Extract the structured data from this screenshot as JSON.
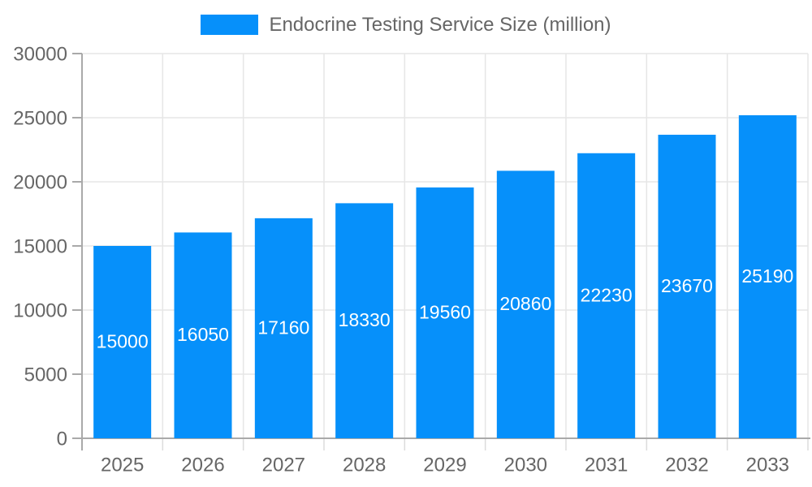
{
  "chart_data": {
    "type": "bar",
    "title": "",
    "legend": {
      "label": "Endocrine Testing Service Size (million)",
      "position": "top"
    },
    "categories": [
      "2025",
      "2026",
      "2027",
      "2028",
      "2029",
      "2030",
      "2031",
      "2032",
      "2033"
    ],
    "series": [
      {
        "name": "Endocrine Testing Service Size (million)",
        "values": [
          15000,
          16050,
          17160,
          18330,
          19560,
          20860,
          22230,
          23670,
          25190
        ]
      }
    ],
    "y_ticks": [
      0,
      5000,
      10000,
      15000,
      20000,
      25000,
      30000
    ],
    "ylim": [
      0,
      30000
    ],
    "xlabel": "",
    "ylabel": "",
    "grid": true,
    "bar_value_labels_visible": true,
    "colors": {
      "bar": "#0690FA",
      "bar_label": "#FFFFFF",
      "grid": "#E6E6E6",
      "axis": "#A9A9A9",
      "x_tick_mark": "#DCDCDC",
      "tick_label": "#666666",
      "legend_text": "#666666",
      "background": "#FFFFFF"
    }
  }
}
